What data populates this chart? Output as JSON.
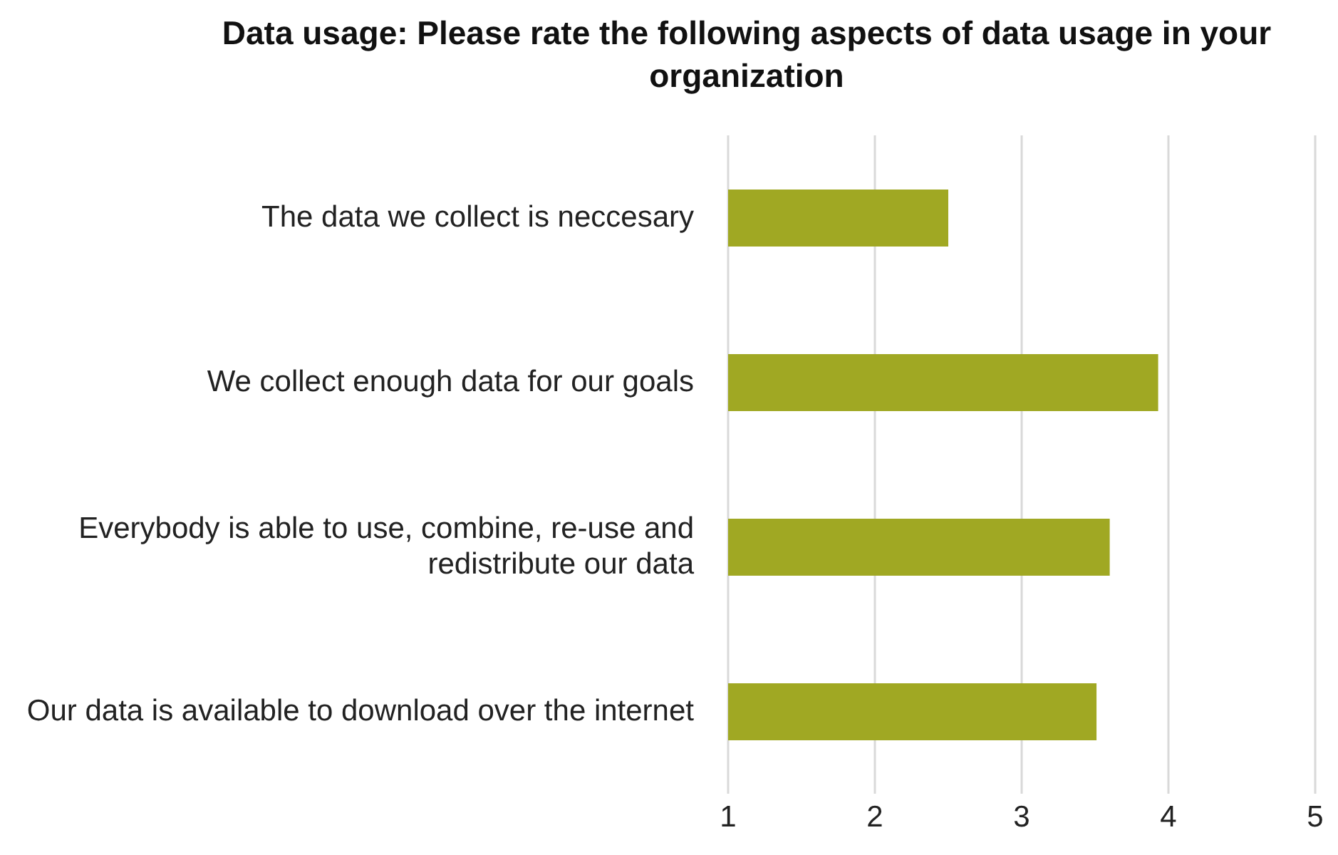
{
  "chart_data": {
    "type": "bar",
    "orientation": "horizontal",
    "title": "Data usage: Please rate the following aspects of data usage in your organization",
    "categories": [
      "The data we collect is neccesary",
      "We collect enough data for our goals",
      "Everybody is able to use, combine, re-use and redistribute our data",
      "Our data is available to download over the internet"
    ],
    "values": [
      2.5,
      3.93,
      3.6,
      3.51
    ],
    "color": "#a0a823",
    "xlim": [
      1,
      5
    ],
    "xticks": [
      1,
      2,
      3,
      4,
      5
    ],
    "grid": "x"
  }
}
